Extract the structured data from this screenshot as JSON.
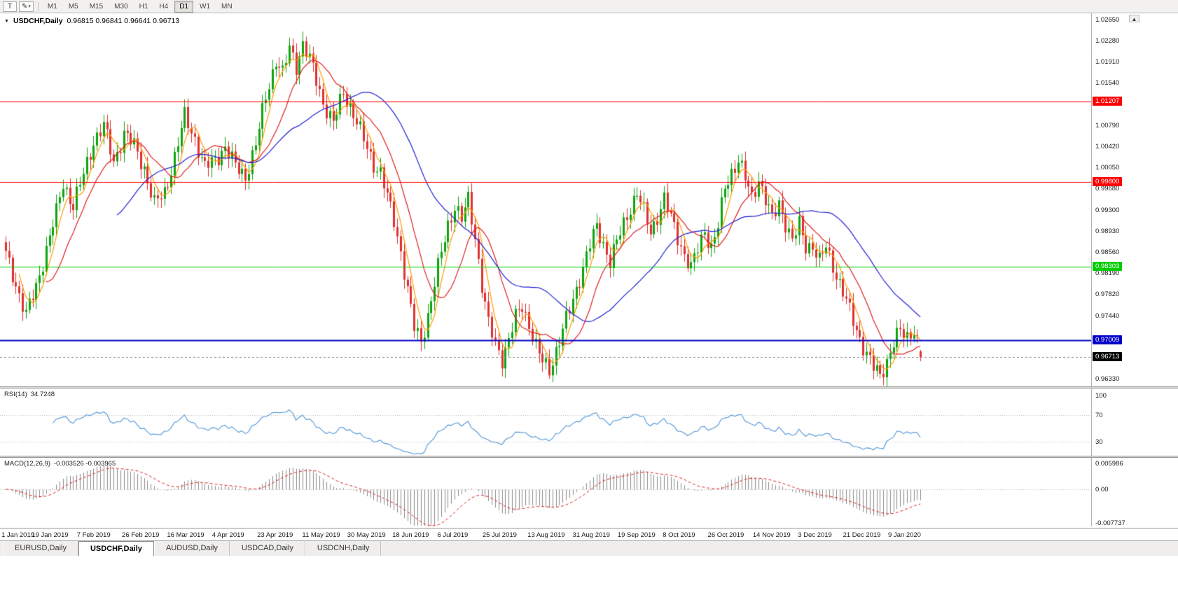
{
  "toolbar": {
    "text_tool_label": "T",
    "timeframes": [
      "M1",
      "M5",
      "M15",
      "M30",
      "H1",
      "H4",
      "D1",
      "W1",
      "MN"
    ],
    "active_timeframe": "D1"
  },
  "icons": {
    "pencil": "✎",
    "caret": "▾",
    "title_marker": "▼",
    "scroll_up": "▲"
  },
  "chart": {
    "title_symbol": "USDCHF,Daily",
    "quote_line": "0.96815 0.96841 0.96641 0.96713"
  },
  "rsi": {
    "label": "RSI(14)",
    "value": "34.7248",
    "period": 14,
    "levels": [
      "100",
      "70",
      "30"
    ],
    "line_color": "#4f96d8"
  },
  "macd": {
    "label": "MACD(12,26,9)",
    "values": "-0.003526 -0.003965",
    "fast": 12,
    "slow": 26,
    "signal": 9,
    "axis": [
      "0.005986",
      "0.00",
      "-0.007737"
    ],
    "histogram_color": "#8a8a8a",
    "signal_color": "#e02020"
  },
  "tabs": [
    {
      "label": "EURUSD,Daily",
      "active": false
    },
    {
      "label": "USDCHF,Daily",
      "active": true
    },
    {
      "label": "AUDUSD,Daily",
      "active": false
    },
    {
      "label": "USDCAD,Daily",
      "active": false
    },
    {
      "label": "USDCNH,Daily",
      "active": false
    }
  ],
  "chart_data": {
    "type": "candlestick",
    "symbol": "USDCHF",
    "timeframe": "Daily",
    "quote": {
      "open": "0.96815",
      "high": "0.96841",
      "low": "0.96641",
      "close": "0.96713"
    },
    "up_color": "#0da50d",
    "down_color": "#e03030",
    "num_candles": 272,
    "y_range": {
      "top": 1.0276,
      "bottom": 0.962
    },
    "y_ticks": [
      "1.02650",
      "1.02280",
      "1.01910",
      "1.01540",
      "1.00790",
      "1.00420",
      "1.00050",
      "0.99680",
      "0.99300",
      "0.98930",
      "0.98560",
      "0.98190",
      "0.97820",
      "0.97440",
      "0.96330"
    ],
    "x_labels": [
      "1 Jan 2019",
      "19 Jan 2019",
      "7 Feb 2019",
      "26 Feb 2019",
      "16 Mar 2019",
      "4 Apr 2019",
      "23 Apr 2019",
      "11 May 2019",
      "30 May 2019",
      "18 Jun 2019",
      "6 Jul 2019",
      "25 Jul 2019",
      "13 Aug 2019",
      "31 Aug 2019",
      "19 Sep 2019",
      "8 Oct 2019",
      "26 Oct 2019",
      "14 Nov 2019",
      "3 Dec 2019",
      "21 Dec 2019",
      "9 Jan 2020"
    ],
    "h_lines": [
      {
        "label": "1.01207",
        "value": 1.01207,
        "color": "#ff0000",
        "width": 1,
        "type": "resistance"
      },
      {
        "label": "0.99800",
        "value": 0.998,
        "color": "#ff0000",
        "width": 1,
        "type": "resistance"
      },
      {
        "label": "0.98303",
        "value": 0.98303,
        "color": "#00cc00",
        "width": 1,
        "type": "level"
      },
      {
        "label": "0.97009",
        "value": 0.97009,
        "color": "#0000c8",
        "width": 2,
        "type": "support"
      }
    ],
    "current_price": {
      "label": "0.96713",
      "value": 0.96713,
      "color": "#000000"
    },
    "moving_averages": [
      {
        "name": "fast-ma",
        "period": 5,
        "color": "#ff9c00"
      },
      {
        "name": "medium-ma",
        "period": 13,
        "color": "#e02020"
      },
      {
        "name": "slow-ma",
        "period": 34,
        "color": "#2121d4"
      }
    ],
    "price_anchors": [
      [
        0,
        0.9852
      ],
      [
        3,
        0.98
      ],
      [
        6,
        0.9745
      ],
      [
        9,
        0.9795
      ],
      [
        12,
        0.9862
      ],
      [
        15,
        0.9925
      ],
      [
        17,
        0.9978
      ],
      [
        20,
        0.9938
      ],
      [
        23,
        0.9992
      ],
      [
        26,
        1.0052
      ],
      [
        29,
        1.0078
      ],
      [
        32,
        1.0014
      ],
      [
        35,
        1.0066
      ],
      [
        38,
        1.0042
      ],
      [
        41,
        1.0004
      ],
      [
        44,
        0.994
      ],
      [
        47,
        0.996
      ],
      [
        50,
        1.0024
      ],
      [
        53,
        1.0094
      ],
      [
        56,
        1.0056
      ],
      [
        59,
        1.0004
      ],
      [
        62,
        1.0018
      ],
      [
        65,
        1.0042
      ],
      [
        68,
        1.0006
      ],
      [
        71,
        0.999
      ],
      [
        74,
        1.0044
      ],
      [
        77,
        1.013
      ],
      [
        80,
        1.0195
      ],
      [
        82,
        1.0168
      ],
      [
        84,
        1.0215
      ],
      [
        86,
        1.0185
      ],
      [
        88,
        1.0222
      ],
      [
        91,
        1.0178
      ],
      [
        94,
        1.012
      ],
      [
        97,
        1.0082
      ],
      [
        100,
        1.0138
      ],
      [
        103,
        1.01
      ],
      [
        106,
        1.0052
      ],
      [
        109,
        1.0012
      ],
      [
        111,
        0.9996
      ],
      [
        113,
        0.9952
      ],
      [
        115,
        0.9912
      ],
      [
        117,
        0.9858
      ],
      [
        119,
        0.9788
      ],
      [
        121,
        0.9722
      ],
      [
        123,
        0.97
      ],
      [
        125,
        0.9745
      ],
      [
        127,
        0.98
      ],
      [
        129,
        0.9855
      ],
      [
        131,
        0.9905
      ],
      [
        133,
        0.9938
      ],
      [
        135,
        0.9912
      ],
      [
        137,
        0.9948
      ],
      [
        139,
        0.9885
      ],
      [
        141,
        0.9798
      ],
      [
        143,
        0.9728
      ],
      [
        145,
        0.9695
      ],
      [
        147,
        0.967
      ],
      [
        149,
        0.9702
      ],
      [
        151,
        0.974
      ],
      [
        153,
        0.9762
      ],
      [
        155,
        0.973
      ],
      [
        157,
        0.969
      ],
      [
        159,
        0.9662
      ],
      [
        161,
        0.965
      ],
      [
        163,
        0.9684
      ],
      [
        165,
        0.9718
      ],
      [
        167,
        0.9754
      ],
      [
        169,
        0.9792
      ],
      [
        171,
        0.983
      ],
      [
        173,
        0.9868
      ],
      [
        175,
        0.99
      ],
      [
        177,
        0.9872
      ],
      [
        179,
        0.984
      ],
      [
        181,
        0.9872
      ],
      [
        183,
        0.9906
      ],
      [
        185,
        0.9936
      ],
      [
        187,
        0.996
      ],
      [
        189,
        0.9926
      ],
      [
        191,
        0.9892
      ],
      [
        193,
        0.992
      ],
      [
        195,
        0.9948
      ],
      [
        197,
        0.9916
      ],
      [
        199,
        0.9884
      ],
      [
        201,
        0.9852
      ],
      [
        203,
        0.9826
      ],
      [
        205,
        0.9862
      ],
      [
        207,
        0.9896
      ],
      [
        209,
        0.9864
      ],
      [
        211,
        0.99
      ],
      [
        213,
        0.997
      ],
      [
        215,
        0.9998
      ],
      [
        217,
        1.0018
      ],
      [
        219,
        0.9984
      ],
      [
        221,
        0.9952
      ],
      [
        223,
        0.9986
      ],
      [
        225,
        0.9948
      ],
      [
        227,
        0.9912
      ],
      [
        229,
        0.9944
      ],
      [
        231,
        0.9908
      ],
      [
        233,
        0.9874
      ],
      [
        235,
        0.9904
      ],
      [
        237,
        0.9868
      ],
      [
        239,
        0.9868
      ],
      [
        241,
        0.9838
      ],
      [
        243,
        0.9866
      ],
      [
        245,
        0.9834
      ],
      [
        247,
        0.98
      ],
      [
        249,
        0.9768
      ],
      [
        251,
        0.9736
      ],
      [
        253,
        0.9706
      ],
      [
        255,
        0.9676
      ],
      [
        257,
        0.9652
      ],
      [
        259,
        0.964
      ],
      [
        261,
        0.9666
      ],
      [
        263,
        0.9696
      ],
      [
        265,
        0.9716
      ],
      [
        267,
        0.9708
      ],
      [
        269,
        0.9722
      ],
      [
        270,
        0.9698
      ],
      [
        271,
        0.9671
      ]
    ]
  }
}
